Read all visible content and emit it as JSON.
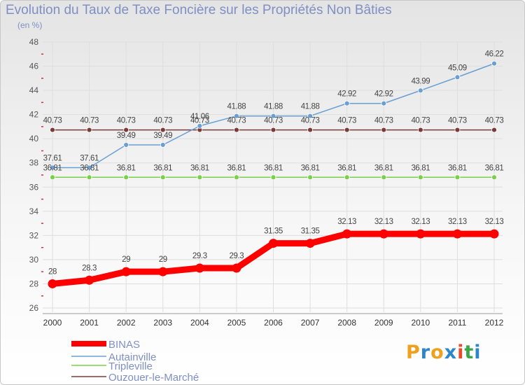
{
  "chart_data": {
    "type": "line",
    "title": "Evolution du Taux de Taxe Foncière sur les Propriétés Non Bâties",
    "ylabel": "(en %)",
    "xlabel": "",
    "x": [
      "2000",
      "2001",
      "2002",
      "2003",
      "2004",
      "2005",
      "2006",
      "2007",
      "2008",
      "2009",
      "2010",
      "2011",
      "2012"
    ],
    "ylim": [
      26,
      48
    ],
    "yticks": [
      26,
      28,
      30,
      32,
      34,
      36,
      38,
      40,
      42,
      44,
      46,
      48
    ],
    "ytick_labels": [
      "26",
      "28",
      "30",
      "32",
      "34",
      "36",
      "38",
      "40",
      "42",
      "44",
      "46",
      "48"
    ],
    "grid": true,
    "legend_position": "bottom-left",
    "series": [
      {
        "name": "BINAS",
        "color": "#ff0000",
        "values": [
          28,
          28.3,
          29,
          29,
          29.3,
          29.3,
          31.35,
          31.35,
          32.13,
          32.13,
          32.13,
          32.13,
          32.13
        ],
        "labels": [
          "28",
          "28.3",
          "29",
          "29",
          "29.3",
          "29.3",
          "31.35",
          "31.35",
          "32.13",
          "32.13",
          "32.13",
          "32.13",
          "32.13"
        ]
      },
      {
        "name": "Autainville",
        "color": "#6a9fd4",
        "values": [
          37.61,
          37.61,
          39.49,
          39.49,
          41.06,
          41.88,
          41.88,
          41.88,
          42.92,
          42.92,
          43.99,
          45.09,
          46.22
        ],
        "labels": [
          "37.61",
          "37.61",
          "39.49",
          "39.49",
          "41.06",
          "41.88",
          "41.88",
          "41.88",
          "42.92",
          "42.92",
          "43.99",
          "45.09",
          "46.22"
        ]
      },
      {
        "name": "Tripleville",
        "color": "#7ccf4a",
        "values": [
          36.81,
          36.81,
          36.81,
          36.81,
          36.81,
          36.81,
          36.81,
          36.81,
          36.81,
          36.81,
          36.81,
          36.81,
          36.81
        ],
        "labels": [
          "36.81",
          "36.81",
          "36.81",
          "36.81",
          "36.81",
          "36.81",
          "36.81",
          "36.81",
          "36.81",
          "36.81",
          "36.81",
          "36.81",
          "36.81"
        ]
      },
      {
        "name": "Ouzouer-le-Marché",
        "color": "#7a3b3b",
        "values": [
          40.73,
          40.73,
          40.73,
          40.73,
          40.73,
          40.73,
          40.73,
          40.73,
          40.73,
          40.73,
          40.73,
          40.73,
          40.73
        ],
        "labels": [
          "40.73",
          "40.73",
          "40.73",
          "40.73",
          "40.73",
          "40.73",
          "40.73",
          "40.73",
          "40.73",
          "40.73",
          "40.73",
          "40.73",
          "40.73"
        ]
      }
    ]
  },
  "branding": {
    "logo_letters": [
      "P",
      "r",
      "o",
      "x",
      "i",
      "t",
      "i"
    ],
    "logo_colors": [
      "#f0a020",
      "#2e86c8",
      "#f0a020",
      "#2e86c8",
      "#e84a2a",
      "#3aa84a",
      "#2e86c8"
    ]
  },
  "text_color": "#7f8fc3"
}
